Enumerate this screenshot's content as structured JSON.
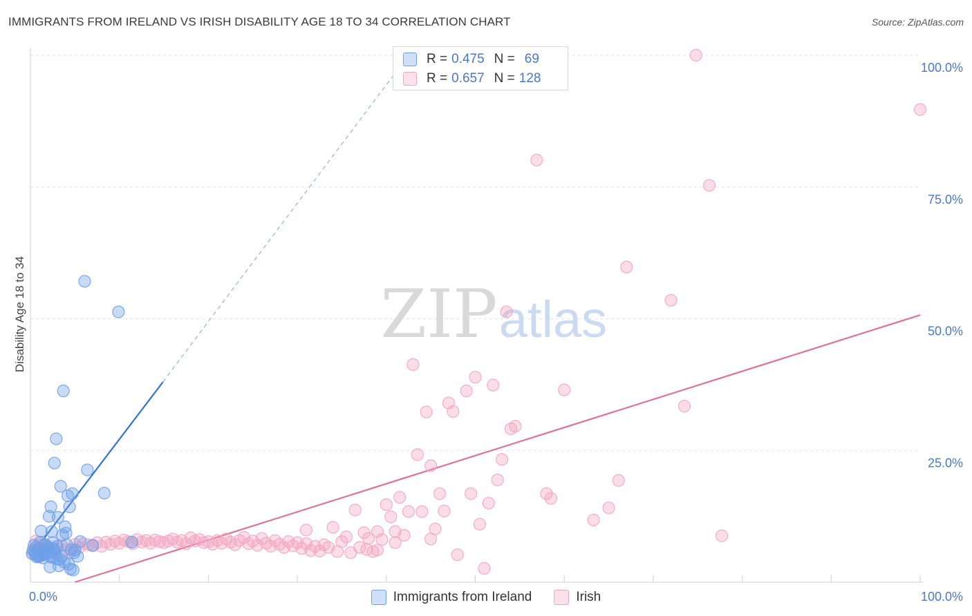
{
  "title": "IMMIGRANTS FROM IRELAND VS IRISH DISABILITY AGE 18 TO 34 CORRELATION CHART",
  "source": "Source: ZipAtlas.com",
  "watermark": {
    "zip": "ZIP",
    "atlas": "atlas"
  },
  "legend": [
    {
      "r_label": "R =",
      "r_value": "0.475",
      "n_label": "N =",
      "n_value": "69",
      "color": "#6fa0e8"
    },
    {
      "r_label": "R =",
      "r_value": "0.657",
      "n_label": "N =",
      "n_value": "128",
      "color": "#f3a6bf"
    }
  ],
  "chart_data": {
    "type": "scatter",
    "title": "IMMIGRANTS FROM IRELAND VS IRISH DISABILITY AGE 18 TO 34 CORRELATION CHART",
    "xlabel": "",
    "ylabel": "Disability Age 18 to 34",
    "xlim": [
      0,
      100
    ],
    "ylim": [
      0,
      100
    ],
    "x_tick_labels": [
      "0.0%",
      "100.0%"
    ],
    "y_ticks": [
      25,
      50,
      75,
      100
    ],
    "y_tick_labels": [
      "25.0%",
      "50.0%",
      "75.0%",
      "100.0%"
    ],
    "grid": true,
    "legend_position": "bottom",
    "series": [
      {
        "name": "Immigrants from Ireland",
        "color": "#6fa0e8",
        "line_color": "#2f72d6",
        "trend": {
          "x0": 0.3,
          "y0": 5.6,
          "x1": 14.9,
          "y1": 38.0,
          "x_dash_end": 42.5,
          "y_dash_end": 100
        },
        "points": [
          [
            0.2,
            5.4
          ],
          [
            0.3,
            6.1
          ],
          [
            0.4,
            7.0
          ],
          [
            0.5,
            5.8
          ],
          [
            0.6,
            6.6
          ],
          [
            0.7,
            4.8
          ],
          [
            0.8,
            5.2
          ],
          [
            0.9,
            6.3
          ],
          [
            1.0,
            5.0
          ],
          [
            1.1,
            7.6
          ],
          [
            1.2,
            9.7
          ],
          [
            1.3,
            6.0
          ],
          [
            1.4,
            4.6
          ],
          [
            1.5,
            5.6
          ],
          [
            1.6,
            7.2
          ],
          [
            1.7,
            6.9
          ],
          [
            1.8,
            5.3
          ],
          [
            1.9,
            6.5
          ],
          [
            2.0,
            5.9
          ],
          [
            2.1,
            12.5
          ],
          [
            2.2,
            2.9
          ],
          [
            2.3,
            14.3
          ],
          [
            2.4,
            9.6
          ],
          [
            2.5,
            4.7
          ],
          [
            2.6,
            6.4
          ],
          [
            2.7,
            22.6
          ],
          [
            2.8,
            5.5
          ],
          [
            2.9,
            27.2
          ],
          [
            3.0,
            6.8
          ],
          [
            3.1,
            12.3
          ],
          [
            3.2,
            3.1
          ],
          [
            3.3,
            4.3
          ],
          [
            3.4,
            18.2
          ],
          [
            3.5,
            4.9
          ],
          [
            3.6,
            8.9
          ],
          [
            3.7,
            36.3
          ],
          [
            3.8,
            3.8
          ],
          [
            3.9,
            10.5
          ],
          [
            4.0,
            9.3
          ],
          [
            4.1,
            7.1
          ],
          [
            4.2,
            16.4
          ],
          [
            4.3,
            3.4
          ],
          [
            4.4,
            14.3
          ],
          [
            4.5,
            2.5
          ],
          [
            4.6,
            6.2
          ],
          [
            4.7,
            16.8
          ],
          [
            4.8,
            2.3
          ],
          [
            4.9,
            5.6
          ],
          [
            5.0,
            6.1
          ],
          [
            5.3,
            4.9
          ],
          [
            5.6,
            7.7
          ],
          [
            6.1,
            57.1
          ],
          [
            6.4,
            21.3
          ],
          [
            7.0,
            7.0
          ],
          [
            8.3,
            16.9
          ],
          [
            9.9,
            51.3
          ],
          [
            11.4,
            7.6
          ],
          [
            1.5,
            5.3
          ],
          [
            2.0,
            6.6
          ],
          [
            2.5,
            7.5
          ],
          [
            1.8,
            5.9
          ],
          [
            1.0,
            4.9
          ],
          [
            0.6,
            5.2
          ],
          [
            1.3,
            5.1
          ],
          [
            2.2,
            4.8
          ],
          [
            3.0,
            4.4
          ],
          [
            2.7,
            6.1
          ],
          [
            1.6,
            6.0
          ],
          [
            0.9,
            4.8
          ]
        ]
      },
      {
        "name": "Irish",
        "color": "#f3a6bf",
        "line_color": "#e07096",
        "trend": {
          "x0": 5.0,
          "y0": 0.0,
          "x1": 100.0,
          "y1": 50.7
        },
        "points": [
          [
            0.3,
            5.6
          ],
          [
            0.8,
            6.3
          ],
          [
            1.3,
            7.4
          ],
          [
            1.9,
            6.9
          ],
          [
            2.4,
            5.8
          ],
          [
            3.0,
            6.4
          ],
          [
            3.5,
            7.0
          ],
          [
            4.0,
            6.2
          ],
          [
            4.5,
            5.7
          ],
          [
            5.0,
            7.2
          ],
          [
            5.5,
            6.6
          ],
          [
            6.0,
            7.3
          ],
          [
            6.5,
            7.1
          ],
          [
            7.0,
            6.9
          ],
          [
            7.5,
            7.5
          ],
          [
            8.0,
            6.8
          ],
          [
            8.5,
            7.6
          ],
          [
            9.0,
            7.2
          ],
          [
            9.5,
            7.8
          ],
          [
            10.0,
            7.4
          ],
          [
            10.5,
            8.0
          ],
          [
            11.0,
            7.7
          ],
          [
            11.5,
            7.3
          ],
          [
            12.0,
            8.1
          ],
          [
            12.5,
            7.6
          ],
          [
            13.0,
            7.9
          ],
          [
            13.5,
            7.4
          ],
          [
            14.0,
            8.0
          ],
          [
            14.5,
            7.7
          ],
          [
            15.0,
            7.5
          ],
          [
            15.5,
            7.8
          ],
          [
            16.0,
            8.2
          ],
          [
            16.5,
            7.6
          ],
          [
            17.0,
            7.9
          ],
          [
            17.5,
            7.3
          ],
          [
            18.0,
            8.4
          ],
          [
            18.5,
            7.8
          ],
          [
            19.0,
            8.1
          ],
          [
            19.5,
            7.5
          ],
          [
            20.0,
            7.7
          ],
          [
            20.5,
            7.2
          ],
          [
            21.0,
            7.9
          ],
          [
            21.5,
            7.4
          ],
          [
            22.0,
            8.2
          ],
          [
            22.5,
            7.6
          ],
          [
            23.0,
            7.1
          ],
          [
            23.5,
            7.9
          ],
          [
            24.0,
            8.5
          ],
          [
            24.5,
            7.3
          ],
          [
            25.0,
            7.8
          ],
          [
            25.5,
            7.0
          ],
          [
            26.0,
            8.3
          ],
          [
            26.5,
            7.4
          ],
          [
            27.0,
            6.8
          ],
          [
            27.5,
            7.9
          ],
          [
            28.0,
            7.2
          ],
          [
            28.5,
            6.6
          ],
          [
            29.0,
            7.7
          ],
          [
            29.5,
            6.9
          ],
          [
            30.0,
            7.5
          ],
          [
            30.5,
            6.4
          ],
          [
            31.0,
            7.3
          ],
          [
            31.5,
            6.0
          ],
          [
            32.0,
            6.8
          ],
          [
            32.5,
            5.9
          ],
          [
            33.0,
            7.1
          ],
          [
            33.5,
            6.6
          ],
          [
            34.0,
            10.4
          ],
          [
            34.5,
            5.8
          ],
          [
            35.0,
            7.7
          ],
          [
            35.5,
            8.6
          ],
          [
            36.0,
            5.6
          ],
          [
            36.5,
            13.7
          ],
          [
            37.0,
            6.6
          ],
          [
            37.5,
            9.4
          ],
          [
            38.0,
            8.3
          ],
          [
            38.5,
            5.8
          ],
          [
            39.0,
            9.6
          ],
          [
            39.5,
            8.1
          ],
          [
            40.0,
            14.7
          ],
          [
            40.5,
            12.4
          ],
          [
            41.0,
            7.5
          ],
          [
            41.5,
            16.1
          ],
          [
            42.0,
            8.9
          ],
          [
            42.5,
            13.4
          ],
          [
            43.0,
            41.3
          ],
          [
            43.5,
            24.2
          ],
          [
            44.0,
            13.4
          ],
          [
            44.5,
            32.3
          ],
          [
            45.0,
            22.1
          ],
          [
            45.5,
            10.1
          ],
          [
            46.0,
            16.8
          ],
          [
            46.5,
            13.5
          ],
          [
            47.0,
            34.0
          ],
          [
            47.5,
            32.4
          ],
          [
            48.0,
            5.2
          ],
          [
            49.0,
            36.3
          ],
          [
            49.5,
            16.8
          ],
          [
            50.0,
            38.9
          ],
          [
            50.5,
            11.0
          ],
          [
            51.0,
            2.6
          ],
          [
            51.5,
            15.0
          ],
          [
            52.0,
            37.4
          ],
          [
            52.5,
            19.4
          ],
          [
            53.0,
            23.3
          ],
          [
            53.5,
            51.3
          ],
          [
            54.0,
            29.1
          ],
          [
            54.5,
            29.6
          ],
          [
            56.9,
            80.1
          ],
          [
            58.0,
            16.8
          ],
          [
            58.5,
            15.9
          ],
          [
            60.0,
            36.5
          ],
          [
            63.3,
            11.8
          ],
          [
            65.0,
            14.1
          ],
          [
            66.1,
            19.3
          ],
          [
            67.0,
            59.8
          ],
          [
            72.0,
            53.5
          ],
          [
            73.5,
            33.4
          ],
          [
            76.3,
            75.3
          ],
          [
            77.7,
            8.8
          ],
          [
            74.8,
            100.0
          ],
          [
            100.0,
            89.7
          ],
          [
            31.0,
            9.9
          ],
          [
            45.0,
            8.2
          ],
          [
            41.0,
            9.6
          ],
          [
            39.0,
            6.1
          ],
          [
            37.8,
            6.2
          ],
          [
            0.6,
            7.8
          ]
        ]
      }
    ]
  }
}
